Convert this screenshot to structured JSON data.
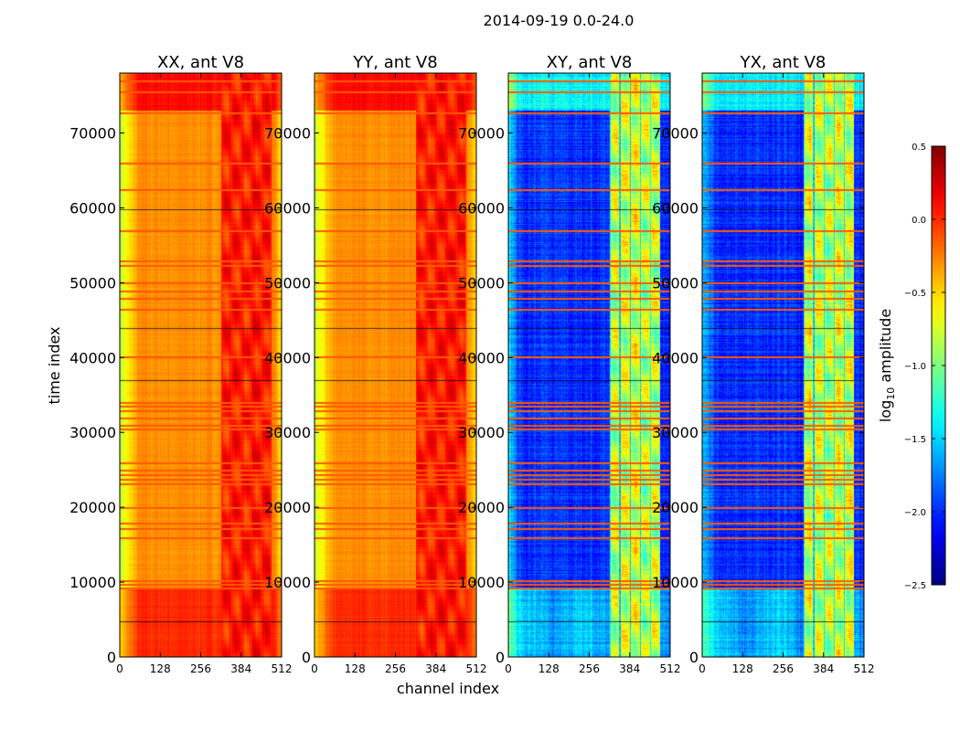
{
  "chart_data": {
    "type": "heatmap",
    "suptitle": "2014-09-19 0.0-24.0",
    "xlabel": "channel index",
    "ylabel": "time index",
    "xlim": [
      0,
      512
    ],
    "ylim": [
      0,
      78000
    ],
    "xticks": [
      "0",
      "128",
      "256",
      "384",
      "512"
    ],
    "xtick_values": [
      0,
      128,
      256,
      384,
      512
    ],
    "yticks": [
      "0",
      "10000",
      "20000",
      "30000",
      "40000",
      "50000",
      "60000",
      "70000"
    ],
    "ytick_values": [
      0,
      10000,
      20000,
      30000,
      40000,
      50000,
      60000,
      70000
    ],
    "panels": [
      {
        "title": "XX, ant V8",
        "base_level": -0.3,
        "band_level": 0.15,
        "low_time_level": 0.0
      },
      {
        "title": "YY, ant V8",
        "base_level": -0.3,
        "band_level": 0.2,
        "low_time_level": 0.0
      },
      {
        "title": "XY, ant V8",
        "base_level": -2.0,
        "band_level": -1.0,
        "low_time_level": -1.6
      },
      {
        "title": "YX, ant V8",
        "base_level": -2.0,
        "band_level": -1.0,
        "low_time_level": -1.6
      }
    ],
    "band_channels": [
      320,
      480
    ],
    "flagged_time_rows": [
      9300,
      9800,
      10300,
      16000,
      17200,
      18000,
      20000,
      23200,
      23800,
      24400,
      25000,
      26000,
      30500,
      31000,
      32000,
      33000,
      33600,
      34000,
      40200,
      46500,
      48000,
      49000,
      50000,
      52400,
      53000,
      57000,
      62500,
      66000,
      72800,
      75500,
      77000
    ],
    "colorbar": {
      "label": "log10 amplitude",
      "label_main": "log",
      "label_sub": "10",
      "label_rest": " amplitude",
      "range": [
        -2.5,
        0.5
      ],
      "ticks": [
        "0.5",
        "0.0",
        "−0.5",
        "−1.0",
        "−1.5",
        "−2.0",
        "−2.5"
      ],
      "tick_values": [
        0.5,
        0.0,
        -0.5,
        -1.0,
        -1.5,
        -2.0,
        -2.5
      ],
      "colormap": "jet"
    }
  }
}
